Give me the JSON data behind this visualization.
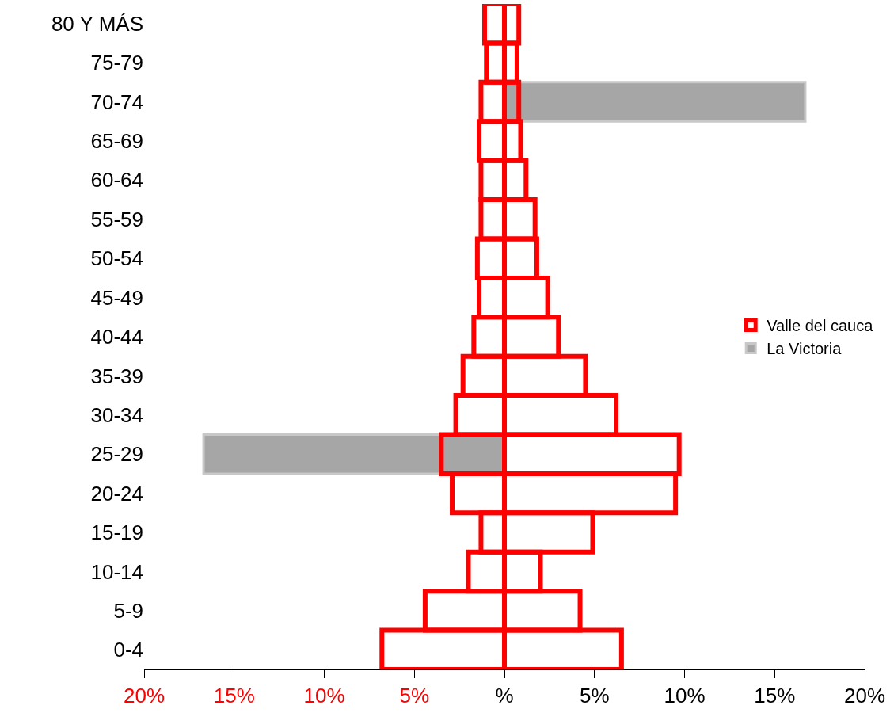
{
  "chart_data": {
    "type": "bar",
    "orientation": "horizontal",
    "categories": [
      "80 Y MÁS",
      "75-79",
      "70-74",
      "65-69",
      "60-64",
      "55-59",
      "50-54",
      "45-49",
      "40-44",
      "35-39",
      "30-34",
      "25-29",
      "20-24",
      "15-19",
      "10-14",
      "5-9",
      "0-4"
    ],
    "series": [
      {
        "name": "Valle del cauca",
        "color": "#ff0000",
        "values": [
          -1.1,
          -1.0,
          -1.3,
          -1.4,
          -1.3,
          -1.3,
          -1.5,
          -1.4,
          -1.7,
          -2.3,
          -2.7,
          -3.5,
          -2.9,
          -1.3,
          -2.0,
          -4.4,
          -6.8
        ]
      },
      {
        "color": "#ff0000",
        "values": [
          0.8,
          0.7,
          0.8,
          0.9,
          1.2,
          1.7,
          1.8,
          2.4,
          3.0,
          4.5,
          6.2,
          9.7,
          9.5,
          4.9,
          2.0,
          4.2,
          6.5
        ]
      },
      {
        "name": "La Victoria",
        "color": "#a6a6a6",
        "values": [
          null,
          null,
          16.7,
          null,
          null,
          null,
          null,
          null,
          null,
          null,
          null,
          -16.7,
          null,
          null,
          null,
          null,
          null
        ]
      }
    ],
    "xlim": [
      -20,
      20
    ],
    "xticks": [
      {
        "value": -20,
        "label": "20%"
      },
      {
        "value": -15,
        "label": "15%"
      },
      {
        "value": -10,
        "label": "10%"
      },
      {
        "value": -5,
        "label": "5%"
      },
      {
        "value": 0,
        "label": "%"
      },
      {
        "value": 5,
        "label": "5%"
      },
      {
        "value": 10,
        "label": "10%"
      },
      {
        "value": 15,
        "label": "15%"
      },
      {
        "value": 20,
        "label": "20%"
      }
    ],
    "grid": false,
    "legend": "right"
  }
}
